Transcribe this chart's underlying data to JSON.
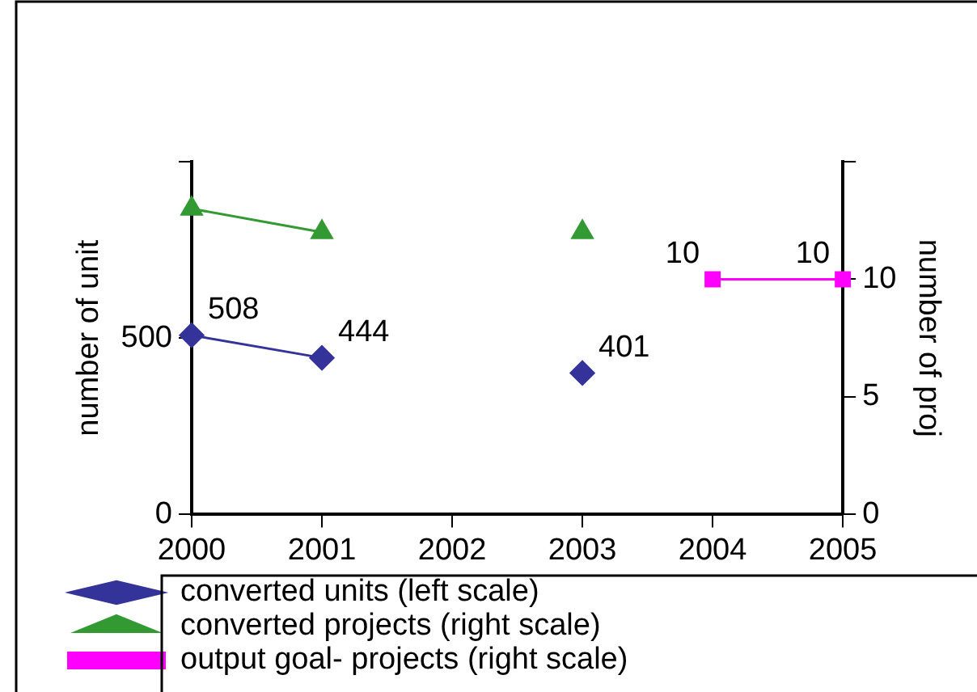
{
  "chart_data": {
    "type": "line",
    "categories": [
      "2000",
      "2001",
      "2002",
      "2003",
      "2004",
      "2005"
    ],
    "ylabel": "number of unit",
    "y2label": "number of proj",
    "ylim": [
      0,
      1000
    ],
    "yticks": [
      0,
      500,
      {
        "value": 1000,
        "label": null
      }
    ],
    "y2lim": [
      0,
      15
    ],
    "y2ticks": [
      0,
      5,
      10,
      {
        "value": 15,
        "label": null
      }
    ],
    "grid": false,
    "legend": "bottom",
    "line_style": "solid",
    "series": [
      {
        "name": "converted units (left scale)",
        "color": "#333399",
        "marker": "diamond",
        "values": [
          508,
          444,
          null,
          401,
          null,
          null
        ],
        "value_labels": [
          "508",
          "444",
          null,
          "401",
          null,
          null
        ]
      },
      {
        "name": "converted projects (right scale)",
        "color": "#339933",
        "marker": "triangle",
        "axis": "y2",
        "values": [
          13,
          12,
          null,
          12,
          null,
          null
        ]
      },
      {
        "name": "output goal- projects (right scale)",
        "color": "#ff00ff",
        "marker": "square",
        "axis": "y2",
        "values": [
          null,
          null,
          null,
          null,
          10,
          10
        ],
        "value_labels": [
          null,
          null,
          null,
          null,
          "10",
          "10"
        ]
      }
    ]
  }
}
